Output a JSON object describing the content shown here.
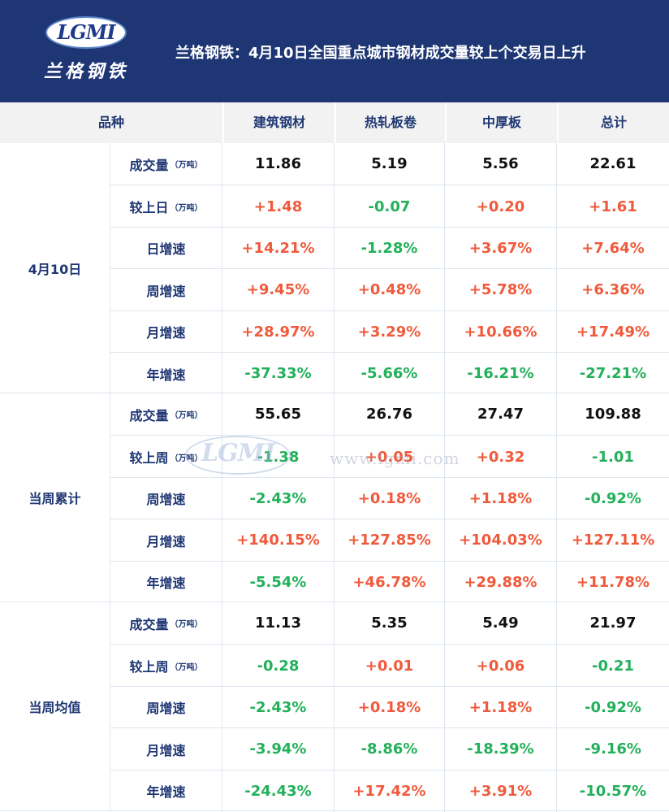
{
  "header": {
    "logo_letters": "LGMI",
    "logo_sub": "兰格钢铁",
    "title": "兰格钢铁：4月10日全国重点城市钢材成交量较上个交易日上升"
  },
  "watermark": {
    "letters": "LGMI",
    "url": "www.lgmi.com"
  },
  "columns": [
    "品种",
    "建筑钢材",
    "热轧板卷",
    "中厚板",
    "总计"
  ],
  "colors": {
    "header_bg": "#1e3673",
    "label": "#1e3673",
    "up": "#f05a3c",
    "down": "#22b05a",
    "neutral": "#111111"
  },
  "groups": [
    {
      "label": "4月10日",
      "rows": [
        {
          "label": "成交量",
          "unit": "（万吨）",
          "tone": "neutral",
          "values": [
            "11.86",
            "5.19",
            "5.56",
            "22.61"
          ]
        },
        {
          "label": "较上日",
          "unit": "（万吨）",
          "tone": "sign",
          "values": [
            "+1.48",
            "-0.07",
            "+0.20",
            "+1.61"
          ]
        },
        {
          "label": "日增速",
          "unit": "",
          "tone": "sign",
          "values": [
            "+14.21%",
            "-1.28%",
            "+3.67%",
            "+7.64%"
          ]
        },
        {
          "label": "周增速",
          "unit": "",
          "tone": "sign",
          "values": [
            "+9.45%",
            "+0.48%",
            "+5.78%",
            "+6.36%"
          ]
        },
        {
          "label": "月增速",
          "unit": "",
          "tone": "sign",
          "values": [
            "+28.97%",
            "+3.29%",
            "+10.66%",
            "+17.49%"
          ]
        },
        {
          "label": "年增速",
          "unit": "",
          "tone": "sign",
          "values": [
            "-37.33%",
            "-5.66%",
            "-16.21%",
            "-27.21%"
          ]
        }
      ]
    },
    {
      "label": "当周累计",
      "rows": [
        {
          "label": "成交量",
          "unit": "（万吨）",
          "tone": "neutral",
          "values": [
            "55.65",
            "26.76",
            "27.47",
            "109.88"
          ]
        },
        {
          "label": "较上周",
          "unit": "（万吨）",
          "tone": "sign",
          "values": [
            "-1.38",
            "+0.05",
            "+0.32",
            "-1.01"
          ]
        },
        {
          "label": "周增速",
          "unit": "",
          "tone": "sign",
          "values": [
            "-2.43%",
            "+0.18%",
            "+1.18%",
            "-0.92%"
          ]
        },
        {
          "label": "月增速",
          "unit": "",
          "tone": "sign",
          "values": [
            "+140.15%",
            "+127.85%",
            "+104.03%",
            "+127.11%"
          ]
        },
        {
          "label": "年增速",
          "unit": "",
          "tone": "sign",
          "values": [
            "-5.54%",
            "+46.78%",
            "+29.88%",
            "+11.78%"
          ]
        }
      ]
    },
    {
      "label": "当周均值",
      "rows": [
        {
          "label": "成交量",
          "unit": "（万吨）",
          "tone": "neutral",
          "values": [
            "11.13",
            "5.35",
            "5.49",
            "21.97"
          ]
        },
        {
          "label": "较上周",
          "unit": "（万吨）",
          "tone": "sign",
          "values": [
            "-0.28",
            "+0.01",
            "+0.06",
            "-0.21"
          ]
        },
        {
          "label": "周增速",
          "unit": "",
          "tone": "sign",
          "values": [
            "-2.43%",
            "+0.18%",
            "+1.18%",
            "-0.92%"
          ]
        },
        {
          "label": "月增速",
          "unit": "",
          "tone": "sign",
          "values": [
            "-3.94%",
            "-8.86%",
            "-18.39%",
            "-9.16%"
          ]
        },
        {
          "label": "年增速",
          "unit": "",
          "tone": "sign",
          "values": [
            "-24.43%",
            "+17.42%",
            "+3.91%",
            "-10.57%"
          ]
        }
      ]
    }
  ]
}
